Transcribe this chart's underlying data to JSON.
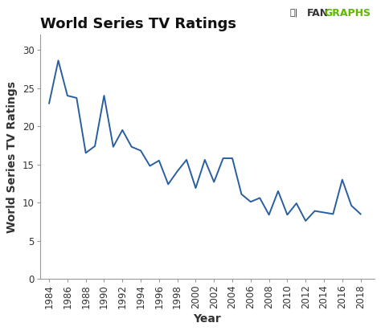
{
  "title": "World Series TV Ratings",
  "xlabel": "Year",
  "ylabel": "World Series TV Ratings",
  "years": [
    1984,
    1985,
    1986,
    1987,
    1988,
    1989,
    1990,
    1991,
    1992,
    1993,
    1994,
    1995,
    1996,
    1997,
    1998,
    1999,
    2000,
    2001,
    2002,
    2003,
    2004,
    2005,
    2006,
    2007,
    2008,
    2009,
    2010,
    2011,
    2012,
    2013,
    2014,
    2015,
    2016,
    2017,
    2018
  ],
  "ratings": [
    23.0,
    28.6,
    24.0,
    23.7,
    16.5,
    17.4,
    24.0,
    17.3,
    19.5,
    17.3,
    16.8,
    14.8,
    15.5,
    12.4,
    14.1,
    15.6,
    11.9,
    15.6,
    12.7,
    15.8,
    15.8,
    11.1,
    10.1,
    10.6,
    8.4,
    11.5,
    8.4,
    9.9,
    7.6,
    8.9,
    8.7,
    8.5,
    13.0,
    9.6,
    8.5
  ],
  "line_color": "#2a5f9e",
  "ylim": [
    0,
    32
  ],
  "xlim": [
    1983,
    2019.5
  ],
  "yticks": [
    0,
    5,
    10,
    15,
    20,
    25,
    30
  ],
  "xticks": [
    1984,
    1986,
    1988,
    1990,
    1992,
    1994,
    1996,
    1998,
    2000,
    2002,
    2004,
    2006,
    2008,
    2010,
    2012,
    2014,
    2016,
    2018
  ],
  "bg_color": "#ffffff",
  "title_fontsize": 13,
  "label_fontsize": 10,
  "tick_fontsize": 8.5,
  "fangraphs_text_main": "FAN",
  "fangraphs_text_accent": "GRAPHS",
  "fangraphs_color_green": "#5cb800",
  "fangraphs_color_dark": "#333333",
  "spine_color": "#999999",
  "tick_color": "#999999"
}
